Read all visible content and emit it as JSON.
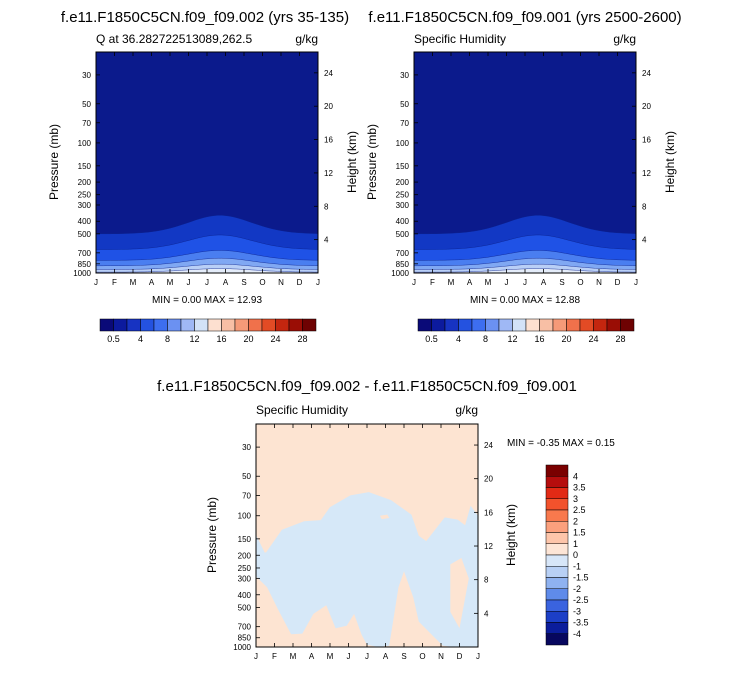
{
  "chart_data": [
    {
      "type": "heatmap",
      "title": "f.e11.F1850C5CN.f09_f09.002 (yrs 35-135)",
      "subtitle_left": "Q at 36.282722513089,262.5",
      "subtitle_right": "g/kg",
      "ylabel": "Pressure (mb)",
      "ylabel_right": "Height (km)",
      "x": [
        "J",
        "F",
        "M",
        "A",
        "M",
        "J",
        "J",
        "A",
        "S",
        "O",
        "N",
        "D",
        "J"
      ],
      "y_ticks": [
        "30",
        "50",
        "70",
        "100",
        "150",
        "200",
        "250",
        "300",
        "400",
        "500",
        "700",
        "850",
        "1000"
      ],
      "height_ticks": [
        "24",
        "20",
        "16",
        "12",
        "8",
        "4"
      ],
      "stats": "MIN =   0.00 MAX =  12.93",
      "min": 0.0,
      "max": 12.93,
      "colorbar_labels": [
        "0.5",
        "4",
        "8",
        "12",
        "16",
        "20",
        "24",
        "28"
      ]
    },
    {
      "type": "heatmap",
      "title": "f.e11.F1850C5CN.f09_f09.001 (yrs 2500-2600)",
      "subtitle_left": "Specific Humidity",
      "subtitle_right": "g/kg",
      "ylabel": "Pressure (mb)",
      "ylabel_right": "Height (km)",
      "x": [
        "J",
        "F",
        "M",
        "A",
        "M",
        "J",
        "J",
        "A",
        "S",
        "O",
        "N",
        "D",
        "J"
      ],
      "y_ticks": [
        "30",
        "50",
        "70",
        "100",
        "150",
        "200",
        "250",
        "300",
        "400",
        "500",
        "700",
        "850",
        "1000"
      ],
      "height_ticks": [
        "24",
        "20",
        "16",
        "12",
        "8",
        "4"
      ],
      "stats": "MIN =   0.00 MAX =  12.88",
      "min": 0.0,
      "max": 12.88,
      "colorbar_labels": [
        "0.5",
        "4",
        "8",
        "12",
        "16",
        "20",
        "24",
        "28"
      ]
    },
    {
      "type": "heatmap",
      "title": "f.e11.F1850C5CN.f09_f09.002 - f.e11.F1850C5CN.f09_f09.001",
      "subtitle_left": "Specific Humidity",
      "subtitle_right": "g/kg",
      "ylabel": "Pressure (mb)",
      "ylabel_right": "Height (km)",
      "x": [
        "J",
        "F",
        "M",
        "A",
        "M",
        "J",
        "J",
        "A",
        "S",
        "O",
        "N",
        "D",
        "J"
      ],
      "y_ticks": [
        "30",
        "50",
        "70",
        "100",
        "150",
        "200",
        "250",
        "300",
        "400",
        "500",
        "700",
        "850",
        "1000"
      ],
      "height_ticks": [
        "24",
        "20",
        "16",
        "12",
        "8",
        "4"
      ],
      "stats": "MIN =  -0.35 MAX =   0.15",
      "min": -0.35,
      "max": 0.15,
      "colorbar_labels": [
        "4",
        "3.5",
        "3",
        "2.5",
        "2",
        "1.5",
        "1",
        "0",
        "-1",
        "-1.5",
        "-2",
        "-2.5",
        "-3",
        "-3.5",
        "-4"
      ]
    }
  ],
  "colors": {
    "abs_scale": [
      "#0a0a78",
      "#0c1a9e",
      "#1733c2",
      "#2452e0",
      "#3d6ef0",
      "#6b91f2",
      "#9fb8f5",
      "#d3e2f7",
      "#fde0d0",
      "#f8bfa5",
      "#f59a78",
      "#f0714b",
      "#e34b25",
      "#c4260f",
      "#9a0d05",
      "#6e0202"
    ],
    "diff_scale": [
      "#7a0000",
      "#b50d0d",
      "#e22a15",
      "#f2522c",
      "#f8794d",
      "#fba07d",
      "#fdc5aa",
      "#fde5d6",
      "#d7e6f8",
      "#b8d0f5",
      "#8fb2f0",
      "#5f8bea",
      "#3a63df",
      "#1c3fc7",
      "#0b1d9c",
      "#07075e"
    ],
    "deep": "#0b1a8c",
    "band1": "#1238c4",
    "band2": "#1f52e6",
    "band3": "#4a7ef0",
    "band4": "#80a8f3",
    "band5": "#b9cff6",
    "band6": "#e4ecf9",
    "diff_pos": "#fde4d2",
    "diff_neg": "#d6e8f8"
  }
}
